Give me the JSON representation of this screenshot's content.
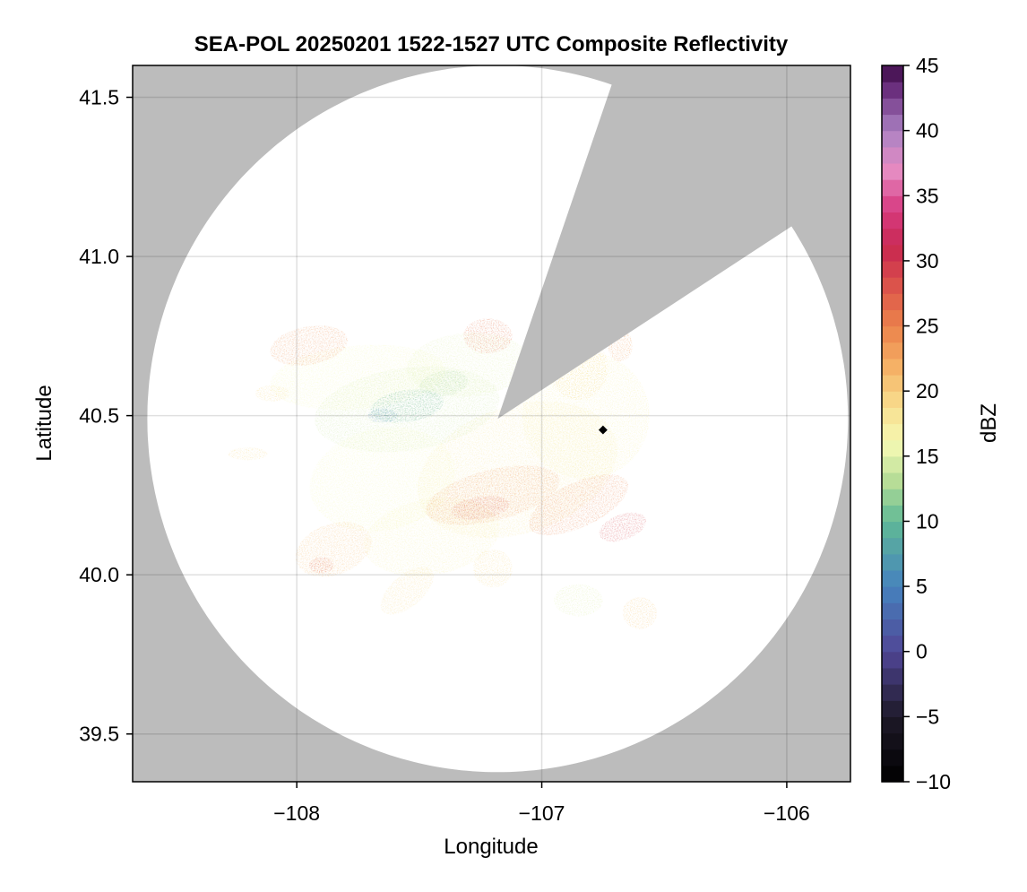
{
  "chart_data": {
    "type": "heatmap",
    "title": "SEA-POL 20250201 1522-1527 UTC Composite Reflectivity",
    "xlabel": "Longitude",
    "ylabel": "Latitude",
    "xlim": [
      -108.67,
      -105.74
    ],
    "ylim": [
      39.35,
      41.6
    ],
    "x_ticks": [
      -108,
      -107,
      -106
    ],
    "x_tick_labels": [
      "−108",
      "−107",
      "−106"
    ],
    "y_ticks": [
      39.5,
      40.0,
      40.5,
      41.0,
      41.5
    ],
    "y_tick_labels": [
      "39.5",
      "40.0",
      "40.5",
      "41.0",
      "41.5"
    ],
    "grid": true,
    "background_color": "#bcbcbc",
    "radar_coverage": {
      "center": [
        -107.18,
        40.49
      ],
      "range_deg_lat": 1.11,
      "range_deg_lon": 1.43,
      "blocked_sector_azimuth_deg": [
        19,
        57
      ]
    },
    "station_marker": {
      "lon": -106.75,
      "lat": 40.455
    },
    "colorbar": {
      "label": "dBZ",
      "range": [
        -10,
        45
      ],
      "step": 1.25,
      "ticks": [
        -10,
        -5,
        0,
        5,
        10,
        15,
        20,
        25,
        30,
        35,
        40,
        45
      ],
      "tick_labels": [
        "−10",
        "−5",
        "0",
        "5",
        "10",
        "15",
        "20",
        "25",
        "30",
        "35",
        "40",
        "45"
      ],
      "colormap": "spectral-to-magma"
    },
    "echo_regions": [
      {
        "lon": -107.1,
        "lat": 40.33,
        "rx": 0.42,
        "ry": 0.2,
        "rot": -18,
        "dbz": 18
      },
      {
        "lon": -107.55,
        "lat": 40.52,
        "rx": 0.38,
        "ry": 0.13,
        "rot": -8,
        "dbz": 14
      },
      {
        "lon": -106.82,
        "lat": 40.5,
        "rx": 0.26,
        "ry": 0.2,
        "rot": 0,
        "dbz": 17
      },
      {
        "lon": -107.75,
        "lat": 40.62,
        "rx": 0.36,
        "ry": 0.1,
        "rot": -5,
        "dbz": 16
      },
      {
        "lon": -107.3,
        "lat": 40.66,
        "rx": 0.25,
        "ry": 0.1,
        "rot": -4,
        "dbz": 15
      },
      {
        "lon": -107.65,
        "lat": 40.3,
        "rx": 0.3,
        "ry": 0.16,
        "rot": -12,
        "dbz": 16
      },
      {
        "lon": -107.45,
        "lat": 40.12,
        "rx": 0.28,
        "ry": 0.12,
        "rot": -10,
        "dbz": 17
      },
      {
        "lon": -107.55,
        "lat": 40.53,
        "rx": 0.15,
        "ry": 0.05,
        "rot": -8,
        "dbz": 9
      },
      {
        "lon": -107.65,
        "lat": 40.5,
        "rx": 0.06,
        "ry": 0.022,
        "rot": 0,
        "dbz": 6
      },
      {
        "lon": -107.4,
        "lat": 40.6,
        "rx": 0.1,
        "ry": 0.04,
        "rot": -10,
        "dbz": 12
      },
      {
        "lon": -107.2,
        "lat": 40.25,
        "rx": 0.28,
        "ry": 0.08,
        "rot": -14,
        "dbz": 24
      },
      {
        "lon": -106.85,
        "lat": 40.22,
        "rx": 0.22,
        "ry": 0.07,
        "rot": -25,
        "dbz": 25
      },
      {
        "lon": -106.67,
        "lat": 40.15,
        "rx": 0.1,
        "ry": 0.04,
        "rot": -20,
        "dbz": 29
      },
      {
        "lon": -107.25,
        "lat": 40.21,
        "rx": 0.12,
        "ry": 0.035,
        "rot": -8,
        "dbz": 28
      },
      {
        "lon": -107.95,
        "lat": 40.72,
        "rx": 0.16,
        "ry": 0.06,
        "rot": -10,
        "dbz": 24
      },
      {
        "lon": -107.22,
        "lat": 40.75,
        "rx": 0.1,
        "ry": 0.055,
        "rot": 0,
        "dbz": 26
      },
      {
        "lon": -107.85,
        "lat": 40.08,
        "rx": 0.16,
        "ry": 0.08,
        "rot": -20,
        "dbz": 21
      },
      {
        "lon": -107.9,
        "lat": 40.03,
        "rx": 0.05,
        "ry": 0.025,
        "rot": 0,
        "dbz": 27
      },
      {
        "lon": -106.85,
        "lat": 40.65,
        "rx": 0.12,
        "ry": 0.1,
        "rot": 0,
        "dbz": 19
      },
      {
        "lon": -106.68,
        "lat": 40.72,
        "rx": 0.05,
        "ry": 0.05,
        "rot": 0,
        "dbz": 23
      },
      {
        "lon": -106.85,
        "lat": 39.92,
        "rx": 0.1,
        "ry": 0.05,
        "rot": 0,
        "dbz": 15
      },
      {
        "lon": -106.6,
        "lat": 39.88,
        "rx": 0.07,
        "ry": 0.05,
        "rot": 0,
        "dbz": 20
      },
      {
        "lon": -108.2,
        "lat": 40.38,
        "rx": 0.08,
        "ry": 0.02,
        "rot": 0,
        "dbz": 19
      },
      {
        "lon": -108.1,
        "lat": 40.57,
        "rx": 0.07,
        "ry": 0.025,
        "rot": 0,
        "dbz": 19
      },
      {
        "lon": -107.55,
        "lat": 39.95,
        "rx": 0.13,
        "ry": 0.05,
        "rot": -40,
        "dbz": 19
      },
      {
        "lon": -107.2,
        "lat": 40.02,
        "rx": 0.08,
        "ry": 0.06,
        "rot": 0,
        "dbz": 19
      }
    ]
  }
}
